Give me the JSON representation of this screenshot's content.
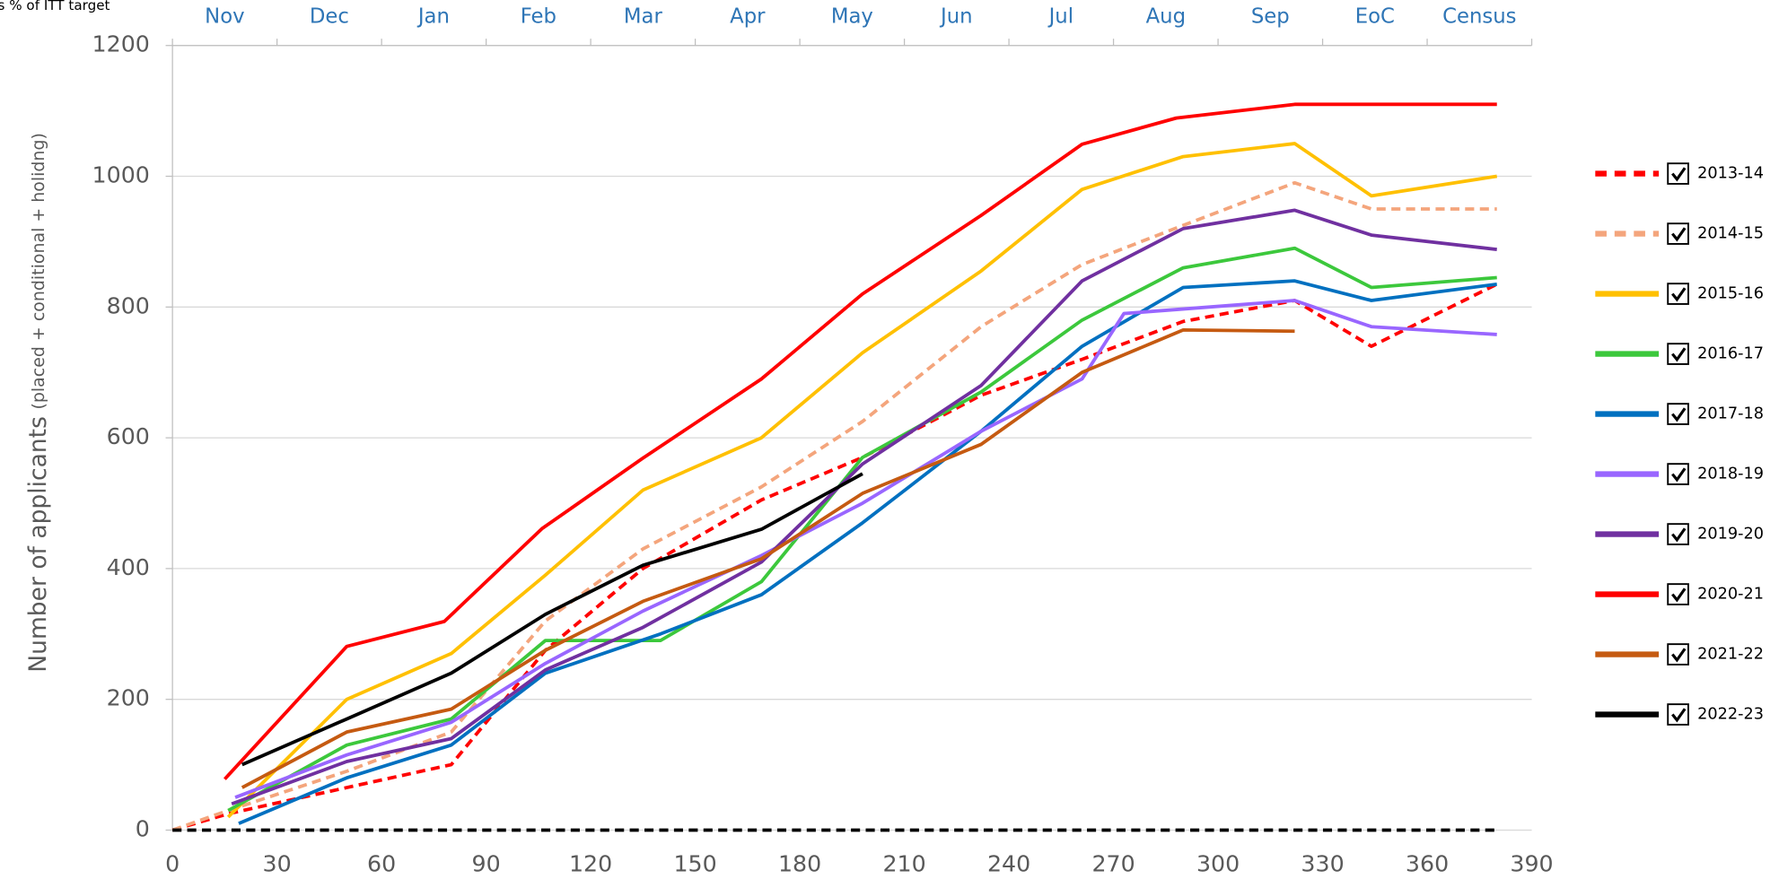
{
  "chart_data": {
    "type": "line",
    "annotation": "s % of ITT target",
    "y_label": "Number of applicants",
    "y_label_note": "(placed + conditional + holidng)",
    "top_categories": [
      "Nov",
      "Dec",
      "Jan",
      "Feb",
      "Mar",
      "Apr",
      "May",
      "Jun",
      "Jul",
      "Aug",
      "Sep",
      "EoC",
      "Census"
    ],
    "xlim": [
      0,
      390
    ],
    "xticks": [
      0,
      30,
      60,
      90,
      120,
      150,
      180,
      210,
      240,
      270,
      300,
      330,
      360,
      390
    ],
    "ylim": [
      0,
      1200
    ],
    "yticks": [
      0,
      200,
      400,
      600,
      800,
      1000,
      1200
    ],
    "grid": true,
    "legend": "right",
    "series": [
      {
        "name": "2013-14",
        "color": "#ff0000",
        "dashed": true,
        "x": [
          0,
          16,
          50,
          80,
          107,
          135,
          169,
          198,
          232,
          261,
          290,
          322,
          344,
          380
        ],
        "values": [
          0,
          25,
          65,
          100,
          275,
          400,
          505,
          570,
          665,
          720,
          778,
          810,
          740,
          835
        ]
      },
      {
        "name": "2014-15",
        "color": "#f4a57c",
        "dashed": true,
        "x": [
          0,
          16,
          50,
          80,
          107,
          135,
          169,
          198,
          232,
          261,
          290,
          322,
          344,
          380
        ],
        "values": [
          0,
          30,
          90,
          150,
          320,
          430,
          525,
          625,
          770,
          865,
          925,
          990,
          950,
          950
        ]
      },
      {
        "name": "2015-16",
        "color": "#ffc000",
        "x": [
          16,
          50,
          80,
          107,
          135,
          169,
          198,
          232,
          261,
          290,
          322,
          344,
          380
        ],
        "values": [
          20,
          200,
          270,
          390,
          520,
          600,
          730,
          855,
          980,
          1030,
          1050,
          970,
          1000
        ]
      },
      {
        "name": "2016-17",
        "color": "#3cc83c",
        "x": [
          16,
          50,
          80,
          107,
          140,
          169,
          198,
          232,
          261,
          290,
          322,
          344,
          380
        ],
        "values": [
          30,
          130,
          170,
          290,
          290,
          380,
          570,
          670,
          780,
          860,
          890,
          830,
          845
        ]
      },
      {
        "name": "2017-18",
        "color": "#0070c0",
        "x": [
          19,
          50,
          80,
          107,
          140,
          169,
          198,
          232,
          261,
          290,
          322,
          344,
          380
        ],
        "values": [
          10,
          80,
          130,
          240,
          300,
          360,
          470,
          610,
          740,
          830,
          840,
          810,
          835
        ]
      },
      {
        "name": "2018-19",
        "color": "#9966ff",
        "x": [
          18,
          50,
          80,
          107,
          135,
          169,
          198,
          232,
          261,
          273,
          322,
          344,
          380
        ],
        "values": [
          50,
          115,
          165,
          255,
          335,
          420,
          500,
          610,
          690,
          790,
          810,
          770,
          758
        ]
      },
      {
        "name": "2019-20",
        "color": "#7030a0",
        "x": [
          17,
          50,
          80,
          107,
          135,
          169,
          198,
          232,
          261,
          290,
          322,
          344,
          380
        ],
        "values": [
          40,
          105,
          140,
          245,
          310,
          410,
          560,
          680,
          840,
          920,
          948,
          910,
          888
        ]
      },
      {
        "name": "2020-21",
        "color": "#ff0000",
        "x": [
          15,
          50,
          78,
          106,
          135,
          169,
          198,
          232,
          261,
          288,
          322,
          344,
          380
        ],
        "values": [
          78,
          281,
          319,
          461,
          569,
          690,
          820,
          940,
          1049,
          1089,
          1110,
          1110,
          1110
        ]
      },
      {
        "name": "2021-22",
        "color": "#c55a11",
        "x": [
          20,
          50,
          80,
          107,
          135,
          169,
          198,
          232,
          261,
          290,
          322
        ],
        "values": [
          65,
          150,
          185,
          275,
          350,
          415,
          515,
          590,
          700,
          765,
          763
        ]
      },
      {
        "name": "2022-23",
        "color": "#000000",
        "x": [
          20,
          50,
          80,
          107,
          135,
          169,
          198
        ],
        "values": [
          100,
          170,
          240,
          330,
          405,
          460,
          545
        ]
      },
      {
        "color": "#000000",
        "dashed": true,
        "x": [
          0,
          380
        ],
        "values": [
          0,
          0
        ]
      }
    ]
  }
}
